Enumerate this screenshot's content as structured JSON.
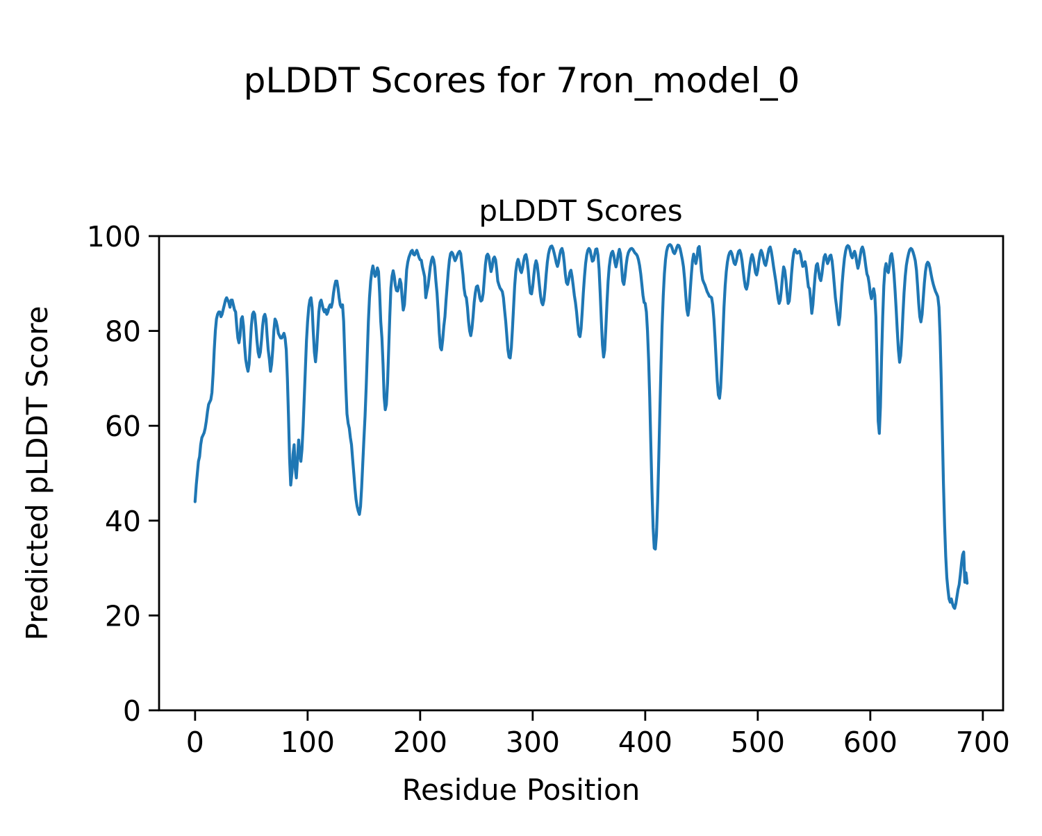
{
  "page": {
    "title": "pLDDT Scores for 7ron_model_0"
  },
  "chart_data": {
    "type": "line",
    "suptitle": "pLDDT Scores for 7ron_model_0",
    "title": "pLDDT Scores",
    "xlabel": "Residue Position",
    "ylabel": "Predicted pLDDT Score",
    "x_ticks": [
      0,
      100,
      200,
      300,
      400,
      500,
      600,
      700
    ],
    "y_ticks": [
      0,
      20,
      40,
      60,
      80,
      100
    ],
    "xlim": [
      -32,
      718
    ],
    "ylim": [
      0,
      100
    ],
    "grid": false,
    "legend_position": "none",
    "background_color": "#ffffff",
    "text_color": "#000000",
    "line_color": "#1f77b4",
    "series": [
      {
        "name": "pLDDT",
        "x_start": 0,
        "x_step": 1,
        "y": [
          44,
          47.5,
          50,
          52.5,
          53.5,
          56,
          57.5,
          58,
          58.5,
          59.5,
          61,
          63,
          64.5,
          65,
          65.5,
          67,
          71,
          76,
          80,
          82.5,
          83.5,
          84,
          84,
          83,
          83.5,
          84.5,
          85.5,
          86.5,
          87,
          86.5,
          86,
          85,
          86.5,
          86.5,
          85.5,
          84.5,
          84,
          81,
          78.5,
          77.5,
          79,
          82.5,
          83,
          81,
          77,
          74,
          72.5,
          71.5,
          73,
          77,
          81,
          83.5,
          84,
          83.5,
          81,
          78,
          75.5,
          74.5,
          75.5,
          78,
          81,
          83,
          83.5,
          82.5,
          79,
          76,
          74,
          71.5,
          73,
          76,
          80,
          82.5,
          82,
          81,
          79.5,
          79,
          78.5,
          78.5,
          79,
          79.5,
          78.5,
          76,
          70,
          62,
          53,
          47.5,
          50,
          54,
          56,
          51,
          49,
          53,
          57,
          54,
          52.5,
          55,
          60,
          66,
          72,
          78,
          82,
          85,
          86.5,
          87,
          85,
          80,
          75.5,
          73.5,
          76,
          80,
          84,
          86,
          86.5,
          85.5,
          84.5,
          84,
          84.5,
          83.5,
          84,
          85,
          85.5,
          85,
          86,
          88,
          89.5,
          90.5,
          90.5,
          89,
          87,
          85.5,
          85,
          85.5,
          82,
          75,
          68,
          62.5,
          60.5,
          59.5,
          57.5,
          56,
          53,
          50,
          47,
          44.5,
          43,
          42,
          41.3,
          43,
          47,
          52,
          57,
          62,
          68,
          75,
          82,
          87,
          90.5,
          92.5,
          93.7,
          92.5,
          91.5,
          92,
          93.3,
          92.5,
          88,
          82,
          78.5,
          73,
          66,
          63.4,
          64.5,
          69,
          76,
          83,
          89,
          91.5,
          92.7,
          91.5,
          89.5,
          88.5,
          88.4,
          89.5,
          90.9,
          90,
          87,
          84.4,
          85.5,
          89,
          92.9,
          94.5,
          95.5,
          96.2,
          96.8,
          97,
          96.2,
          96,
          96.5,
          97,
          96.3,
          95.5,
          95,
          94.9,
          93.5,
          92.5,
          91.4,
          87,
          88.4,
          89.5,
          91.5,
          93.5,
          94.8,
          95.6,
          95,
          93.5,
          90.5,
          88,
          84,
          79.5,
          76.5,
          76,
          78,
          81,
          83,
          86.5,
          89.5,
          92.5,
          95,
          96.3,
          96.6,
          96.3,
          95.5,
          94.8,
          95.3,
          96,
          96.5,
          96.8,
          96.3,
          94,
          91.9,
          89,
          87.5,
          87,
          85,
          82,
          80,
          79,
          80.5,
          83,
          86,
          88,
          89.3,
          89.5,
          88.5,
          87,
          86.3,
          86.5,
          88,
          91,
          94,
          95.8,
          96.2,
          95.7,
          94,
          92.5,
          93.5,
          95.2,
          95.6,
          95,
          93,
          90.5,
          89.7,
          89,
          88.7,
          88.3,
          87,
          84.5,
          82,
          79,
          76,
          74.5,
          74.3,
          76.5,
          80.5,
          85,
          89.5,
          92.5,
          94.3,
          95.1,
          94.3,
          92.8,
          92.3,
          93.3,
          94.8,
          95.8,
          96.1,
          95,
          92.8,
          90,
          88,
          87.8,
          89.3,
          91.8,
          93.8,
          94.8,
          94,
          92,
          89.5,
          87.3,
          86,
          85.5,
          86.5,
          89,
          92,
          94.5,
          96.2,
          97.2,
          97.8,
          97.9,
          97.4,
          96.5,
          95.5,
          94.3,
          93.6,
          94.5,
          96,
          97,
          97.4,
          96.5,
          94.5,
          92,
          90.2,
          89.8,
          90.8,
          92.3,
          92.8,
          91.5,
          89.5,
          87.5,
          86,
          84,
          81.5,
          79.2,
          78.8,
          80.5,
          84,
          88,
          91.5,
          94.2,
          96,
          97,
          97.4,
          97,
          95.8,
          94.7,
          94.9,
          96,
          97.2,
          97.3,
          96,
          93,
          88,
          82,
          77,
          74.5,
          76,
          80.5,
          86,
          90.5,
          93.5,
          95.3,
          96.4,
          96.8,
          96,
          94.5,
          93.5,
          94.5,
          96.2,
          97.2,
          96.3,
          93.5,
          90.5,
          89.8,
          91.5,
          93.8,
          95.5,
          96.5,
          97,
          97.3,
          97.4,
          97.2,
          96.8,
          96.4,
          96.2,
          95.8,
          95,
          93.8,
          92,
          89.8,
          87.5,
          86,
          85.8,
          84,
          80,
          74,
          66,
          56,
          46,
          38.5,
          34.2,
          34,
          37,
          44,
          53,
          63,
          72.5,
          81,
          87.5,
          92,
          95,
          96.8,
          97.7,
          98.1,
          98.2,
          98,
          97.4,
          96.6,
          96.3,
          96.8,
          97.6,
          98.1,
          98,
          97.3,
          96.2,
          95,
          93.5,
          91,
          87.5,
          84.5,
          83.3,
          85,
          88.5,
          92,
          94.8,
          96.2,
          95.3,
          94.2,
          95.5,
          97.5,
          97.8,
          95.5,
          92.5,
          90.8,
          90.2,
          89.7,
          89,
          88.3,
          87.8,
          87.3,
          87.2,
          87,
          85.5,
          82.5,
          78.5,
          74,
          69.5,
          66.5,
          65.8,
          68,
          73,
          79,
          85,
          89.5,
          92.5,
          94.5,
          95.8,
          96.5,
          96.8,
          96.3,
          95.3,
          94.3,
          94,
          94.8,
          96,
          96.8,
          97,
          96.3,
          94.8,
          92.8,
          90.8,
          89.3,
          88.8,
          89.8,
          91.8,
          93.8,
          95.3,
          96.1,
          95.3,
          93.8,
          92.3,
          91.8,
          92.8,
          94.8,
          96.3,
          97,
          96.4,
          95.3,
          94.2,
          93.8,
          94.8,
          96.2,
          97.3,
          97.7,
          96.8,
          95.3,
          93.6,
          92.1,
          90.5,
          88.7,
          86.9,
          85.8,
          86.5,
          88.8,
          91.5,
          93.5,
          92.8,
          90.8,
          88,
          85.8,
          86.3,
          88.8,
          92,
          94.8,
          96.5,
          97.2,
          96.8,
          96.4,
          96.6,
          96.8,
          96.2,
          94.8,
          93.6,
          93.8,
          94.6,
          93.4,
          91.3,
          89.3,
          88.9,
          86.5,
          83.7,
          85.5,
          88.8,
          91.8,
          93.8,
          94.2,
          92.8,
          91.2,
          90.6,
          92,
          94,
          95.6,
          96.1,
          95.2,
          94.2,
          94.8,
          95.8,
          96,
          94.8,
          92.5,
          89.8,
          87,
          85.2,
          83,
          81.3,
          83,
          86.5,
          90,
          93,
          95.3,
          96.8,
          97.7,
          98,
          97.8,
          97,
          95.9,
          95.4,
          96.2,
          96.8,
          96,
          94.4,
          93.2,
          94.2,
          95.8,
          97.2,
          97.7,
          97,
          95.5,
          93.6,
          92,
          91.4,
          90,
          88,
          86.8,
          88,
          88.9,
          87.5,
          83,
          73,
          61,
          58.4,
          64,
          74,
          83,
          89.5,
          93,
          94.2,
          92.8,
          92.3,
          93.8,
          95.8,
          96.3,
          94.8,
          92,
          88.5,
          84.5,
          80,
          76,
          73.4,
          74.8,
          78.5,
          83.5,
          88,
          91.5,
          93.8,
          95.2,
          96.3,
          97.1,
          97.4,
          97.2,
          96.6,
          95.8,
          94.8,
          92.8,
          89.5,
          85.8,
          83,
          81.9,
          83.5,
          86.8,
          90,
          92.5,
          94,
          94.5,
          94.2,
          93.3,
          92,
          90.8,
          89.8,
          89,
          88.3,
          87.8,
          87.2,
          85,
          79,
          70,
          59,
          48,
          39,
          32.5,
          28,
          25.5,
          23.5,
          22.8,
          23.5,
          22.5,
          21.8,
          21.5,
          22.5,
          24,
          25.5,
          26.5,
          28.5,
          31,
          32.8,
          33.4,
          27,
          29,
          26.8
        ]
      }
    ]
  }
}
